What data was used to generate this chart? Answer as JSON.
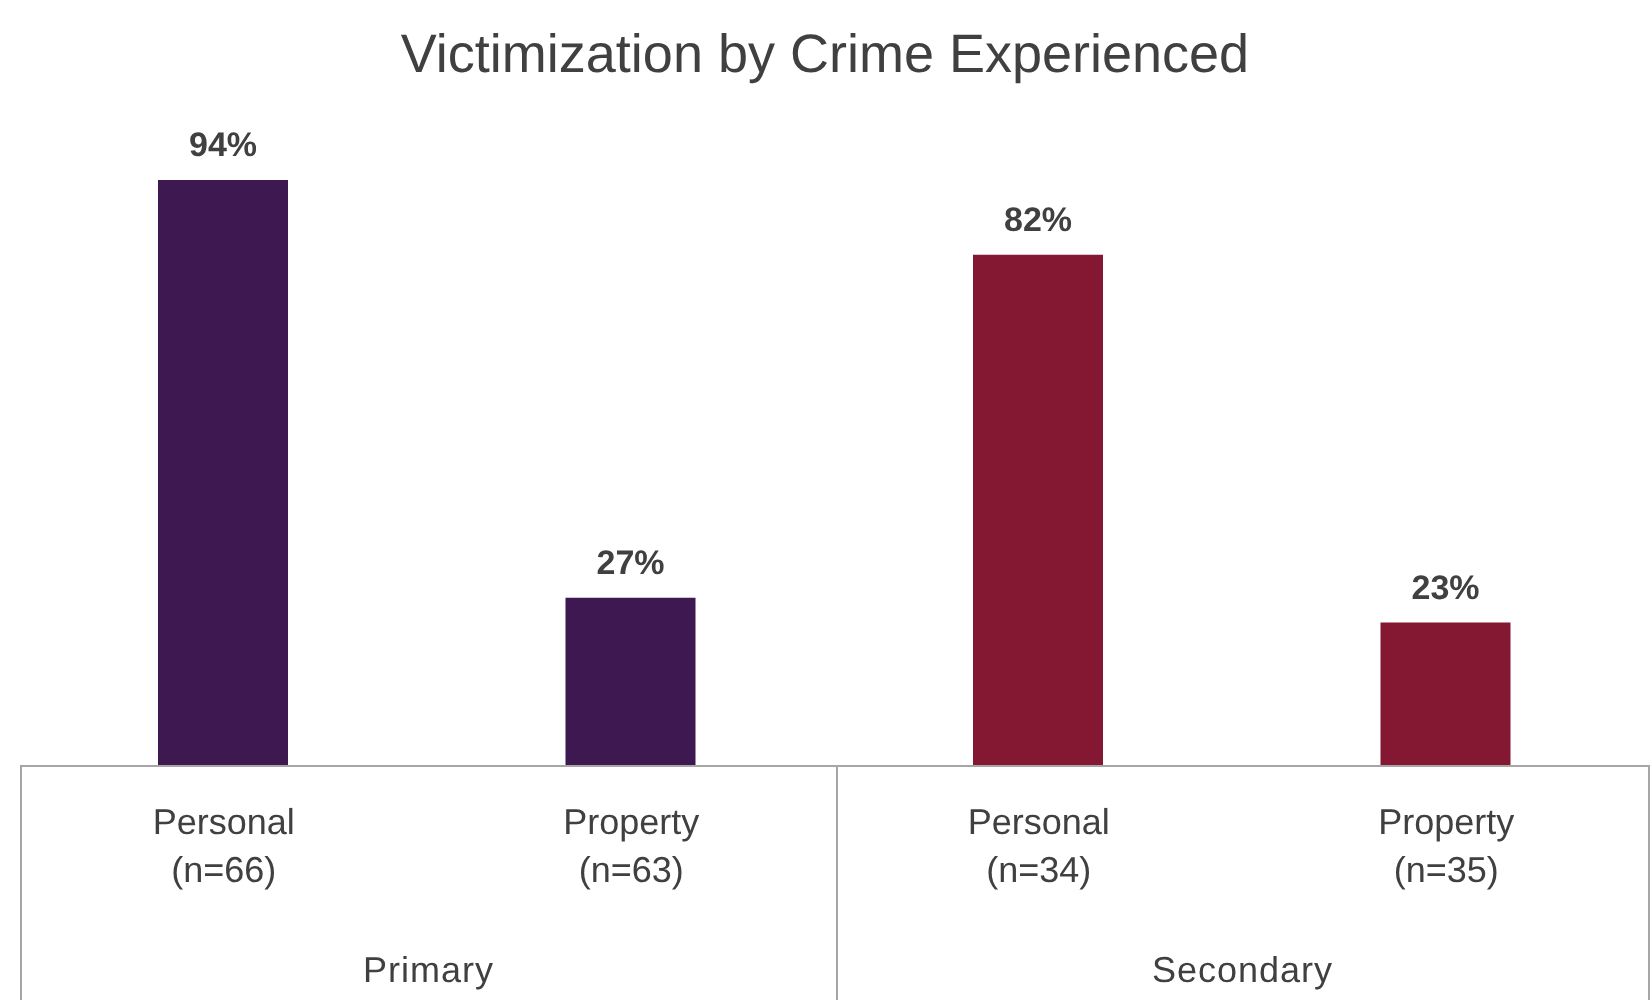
{
  "chart_data": {
    "type": "bar",
    "title": "Victimization by Crime Experienced",
    "categories": [
      "Personal\n(n=66)",
      "Property\n(n=63)",
      "Personal\n(n=34)",
      "Property\n(n=35)"
    ],
    "values": [
      94,
      27,
      82,
      23
    ],
    "colors": [
      "#3e1850",
      "#3e1850",
      "#841731",
      "#841731"
    ],
    "value_labels": [
      "94%",
      "27%",
      "82%",
      "23%"
    ],
    "annotations": [
      "Primary",
      "Secondary"
    ]
  }
}
